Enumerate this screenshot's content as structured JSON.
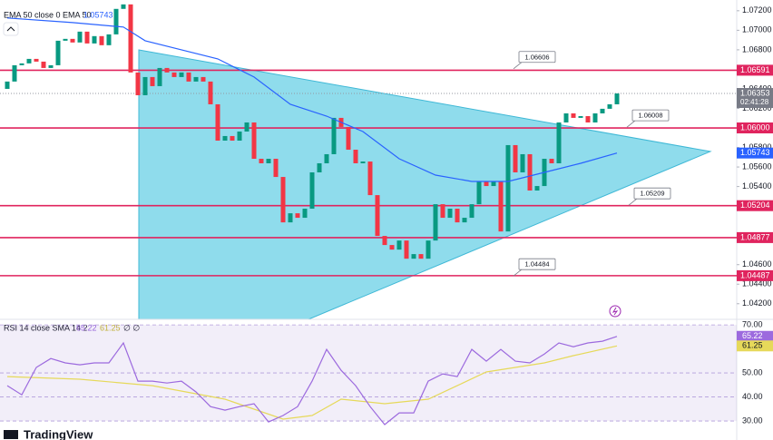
{
  "chart_data": {
    "type": "candlestick",
    "ema_legend": "EMA 50 close 0 EMA 50",
    "ema_value": 1.05743,
    "up_color": "#089981",
    "down_color": "#f23645",
    "candles": {
      "open": [
        1.064,
        1.06475,
        1.06642,
        1.06661,
        1.06707,
        1.06679,
        1.06614,
        1.06642,
        1.06893,
        1.06912,
        1.06875,
        1.06986,
        1.06865,
        1.0694,
        1.06847,
        1.06958,
        1.07219,
        1.07265,
        1.06568,
        1.06335,
        1.06521,
        1.06428,
        1.06614,
        1.06568,
        1.06521,
        1.06568,
        1.06475,
        1.06521,
        1.06475,
        1.06242,
        1.0587,
        1.05917,
        1.0587,
        1.05963,
        1.06056,
        1.05684,
        1.05638,
        1.05684,
        1.05498,
        1.05033,
        1.05126,
        1.0508,
        1.05173,
        1.05545,
        1.05638,
        1.05731,
        1.06103,
        1.0601,
        1.05777,
        1.05638,
        1.05656,
        1.05312,
        1.04894,
        1.04801,
        1.04754,
        1.04847,
        1.04661,
        1.04708,
        1.04661,
        1.04847,
        1.05219,
        1.0508,
        1.05173,
        1.05033,
        1.0508,
        1.05219,
        1.05452,
        1.05405,
        1.05452,
        1.0494,
        1.05824,
        1.05545,
        1.05731,
        1.05359,
        1.05405,
        1.05684,
        1.05638,
        1.06056,
        1.06149,
        1.06103,
        1.06121,
        1.06056,
        1.06149,
        1.06196,
        1.06242
      ],
      "close": [
        1.06475,
        1.06642,
        1.06661,
        1.06707,
        1.06679,
        1.06614,
        1.06642,
        1.06893,
        1.06912,
        1.06875,
        1.06986,
        1.06865,
        1.0694,
        1.06847,
        1.06958,
        1.07219,
        1.07265,
        1.06568,
        1.06335,
        1.06521,
        1.06428,
        1.06614,
        1.06568,
        1.06521,
        1.06568,
        1.06475,
        1.06521,
        1.06475,
        1.06242,
        1.0587,
        1.05917,
        1.0587,
        1.05963,
        1.06056,
        1.05684,
        1.05638,
        1.05684,
        1.05498,
        1.05033,
        1.05126,
        1.0508,
        1.05173,
        1.05545,
        1.05638,
        1.05731,
        1.06103,
        1.0601,
        1.05777,
        1.05638,
        1.05656,
        1.05312,
        1.04894,
        1.04801,
        1.04754,
        1.04847,
        1.04661,
        1.04708,
        1.04661,
        1.04847,
        1.05219,
        1.0508,
        1.05173,
        1.05033,
        1.0508,
        1.05219,
        1.05452,
        1.05405,
        1.05452,
        1.0494,
        1.05824,
        1.05545,
        1.05731,
        1.05359,
        1.05405,
        1.05684,
        1.05638,
        1.06056,
        1.06149,
        1.06103,
        1.06121,
        1.06056,
        1.06149,
        1.06196,
        1.06242,
        1.06353
      ]
    },
    "ema": {
      "color": "#2962ff",
      "x": [
        0,
        9,
        16,
        19,
        24,
        29,
        34,
        39,
        44,
        49,
        54,
        59,
        64,
        69,
        74,
        79,
        84
      ],
      "values": [
        1.07126,
        1.07079,
        1.07033,
        1.06893,
        1.068,
        1.06707,
        1.06521,
        1.06242,
        1.06121,
        1.05963,
        1.05684,
        1.05517,
        1.05452,
        1.05452,
        1.05545,
        1.05638,
        1.05743
      ]
    },
    "ylim": [
      1.0404,
      1.0731
    ],
    "yticks": [
      {
        "value": 1.072,
        "label": "1.07200"
      },
      {
        "value": 1.07,
        "label": "1.07000"
      },
      {
        "value": 1.068,
        "label": "1.06800"
      },
      {
        "value": 1.064,
        "label": "1.06400"
      },
      {
        "value": 1.062,
        "label": "1.06200"
      },
      {
        "value": 1.058,
        "label": "1.05800"
      },
      {
        "value": 1.056,
        "label": "1.05600"
      },
      {
        "value": 1.054,
        "label": "1.05400"
      },
      {
        "value": 1.046,
        "label": "1.04600"
      },
      {
        "value": 1.044,
        "label": "1.04400"
      },
      {
        "value": 1.042,
        "label": "1.04200"
      }
    ],
    "level_color": "#e0245e",
    "levels": [
      {
        "value": 1.06591,
        "label": "1.06591"
      },
      {
        "value": 1.06,
        "label": "1.06000"
      },
      {
        "value": 1.05204,
        "label": "1.05204"
      },
      {
        "value": 1.04877,
        "label": "1.04877"
      },
      {
        "value": 1.04487,
        "label": "1.04487"
      }
    ],
    "callouts": [
      1.06606,
      1.06008,
      1.05209,
      1.04484
    ],
    "last_price": 1.06353,
    "countdown": "02:41:28",
    "rsi": {
      "legend": "RSI 14 close SMA 14 2",
      "legend_extra": "∅ ∅",
      "color": "#9c6ade",
      "sma_color": "#e6d95a",
      "value": 65.22,
      "sma_value": 61.25,
      "band": [
        30,
        70
      ],
      "ylim": [
        22.1,
        72.3
      ],
      "yticks": [
        {
          "value": 70,
          "label": "70.00"
        },
        {
          "value": 50,
          "label": "50.00"
        },
        {
          "value": 40,
          "label": "40.00"
        },
        {
          "value": 30,
          "label": "30.00"
        }
      ],
      "x": [
        0,
        2,
        4,
        6,
        8,
        10,
        12,
        14,
        16,
        18,
        20,
        22,
        24,
        26,
        28,
        30,
        32,
        34,
        36,
        38,
        40,
        42,
        44,
        46,
        48,
        50,
        52,
        54,
        56,
        58,
        60,
        62,
        64,
        66,
        68,
        70,
        72,
        74,
        76,
        78,
        80,
        82,
        84
      ],
      "values": [
        44.7,
        40.9,
        52.3,
        56.0,
        54.2,
        53.4,
        54.2,
        54.2,
        62.5,
        46.6,
        46.6,
        45.8,
        46.6,
        42.1,
        36.0,
        34.5,
        36.0,
        37.2,
        29.6,
        32.3,
        36.0,
        46.6,
        59.8,
        51.1,
        44.7,
        36.0,
        28.5,
        33.4,
        33.4,
        46.6,
        49.6,
        48.5,
        59.8,
        54.9,
        59.8,
        54.9,
        54.2,
        57.9,
        62.5,
        60.9,
        62.5,
        63.2,
        65.22
      ],
      "sma": {
        "x": [
          0,
          10,
          20,
          30,
          38,
          42,
          46,
          52,
          58,
          62,
          66,
          70,
          74,
          78,
          84
        ],
        "values": [
          48.5,
          47.4,
          44.7,
          39.1,
          30.8,
          32.3,
          39.1,
          37.2,
          39.1,
          44.7,
          50.4,
          52.3,
          54.2,
          57.2,
          61.25
        ]
      }
    },
    "brand": "TradingView"
  }
}
